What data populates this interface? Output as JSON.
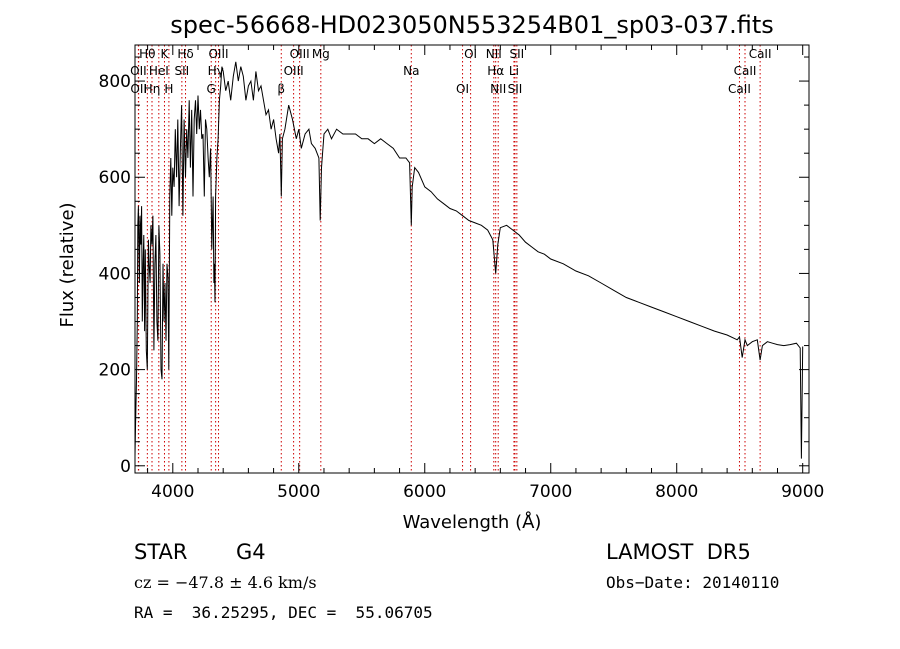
{
  "chart_data": {
    "type": "line",
    "title": "spec-56668-HD023050N553254B01_sp03-037.fits",
    "xlabel": "Wavelength (Å)",
    "ylabel": "Flux (relative)",
    "xlim": [
      3700,
      9050
    ],
    "ylim": [
      -15,
      875
    ],
    "xticks": [
      4000,
      5000,
      6000,
      7000,
      8000,
      9000
    ],
    "yticks": [
      0,
      200,
      400,
      600,
      800
    ],
    "grid": false,
    "series": [
      {
        "x": [
          3700,
          3705,
          3712,
          3718,
          3722,
          3727,
          3735,
          3740,
          3746,
          3752,
          3758,
          3764,
          3770,
          3776,
          3782,
          3790,
          3798,
          3806,
          3812,
          3820,
          3826,
          3834,
          3842,
          3850,
          3858,
          3866,
          3874,
          3882,
          3890,
          3898,
          3906,
          3914,
          3922,
          3930,
          3938,
          3946,
          3954,
          3962,
          3968,
          3976,
          3984,
          3992,
          4000,
          4010,
          4020,
          4030,
          4040,
          4050,
          4060,
          4070,
          4080,
          4090,
          4101,
          4110,
          4120,
          4130,
          4140,
          4150,
          4160,
          4170,
          4180,
          4190,
          4200,
          4210,
          4220,
          4230,
          4240,
          4250,
          4260,
          4270,
          4280,
          4290,
          4300,
          4310,
          4320,
          4326,
          4330,
          4335,
          4340,
          4350,
          4360,
          4370,
          4380,
          4390,
          4400,
          4420,
          4440,
          4460,
          4480,
          4500,
          4520,
          4540,
          4560,
          4580,
          4600,
          4620,
          4640,
          4660,
          4680,
          4700,
          4720,
          4740,
          4760,
          4780,
          4800,
          4820,
          4840,
          4850,
          4861,
          4870,
          4890,
          4920,
          4950,
          4980,
          5000,
          5020,
          5050,
          5080,
          5100,
          5130,
          5160,
          5170,
          5175,
          5180,
          5200,
          5230,
          5260,
          5300,
          5350,
          5400,
          5450,
          5500,
          5550,
          5600,
          5650,
          5700,
          5750,
          5800,
          5850,
          5880,
          5893,
          5900,
          5920,
          5950,
          6000,
          6050,
          6100,
          6150,
          6200,
          6250,
          6300,
          6350,
          6400,
          6450,
          6500,
          6540,
          6563,
          6580,
          6600,
          6650,
          6700,
          6750,
          6800,
          6850,
          6900,
          6950,
          7000,
          7100,
          7200,
          7300,
          7400,
          7500,
          7600,
          7700,
          7800,
          7900,
          8000,
          8100,
          8200,
          8300,
          8400,
          8480,
          8498,
          8520,
          8542,
          8560,
          8600,
          8640,
          8662,
          8680,
          8720,
          8760,
          8800,
          8850,
          8900,
          8950,
          8980,
          8990,
          9000
        ],
        "y": [
          20,
          90,
          180,
          300,
          500,
          540,
          380,
          520,
          460,
          540,
          300,
          420,
          480,
          280,
          450,
          240,
          200,
          470,
          420,
          380,
          500,
          460,
          520,
          240,
          420,
          480,
          300,
          260,
          500,
          440,
          200,
          180,
          420,
          300,
          380,
          260,
          420,
          390,
          200,
          560,
          640,
          520,
          620,
          580,
          700,
          600,
          720,
          540,
          660,
          750,
          520,
          720,
          600,
          700,
          640,
          760,
          620,
          740,
          560,
          720,
          760,
          690,
          770,
          700,
          740,
          680,
          690,
          560,
          720,
          700,
          640,
          600,
          660,
          450,
          560,
          380,
          420,
          340,
          560,
          640,
          680,
          760,
          790,
          830,
          820,
          780,
          800,
          760,
          810,
          840,
          800,
          830,
          810,
          760,
          790,
          800,
          760,
          820,
          780,
          790,
          760,
          730,
          740,
          700,
          720,
          680,
          650,
          690,
          560,
          680,
          700,
          750,
          720,
          680,
          700,
          660,
          690,
          700,
          670,
          660,
          640,
          510,
          560,
          620,
          690,
          700,
          680,
          700,
          690,
          690,
          690,
          680,
          680,
          670,
          680,
          670,
          660,
          640,
          640,
          630,
          500,
          580,
          620,
          610,
          580,
          570,
          555,
          545,
          535,
          530,
          520,
          510,
          505,
          500,
          490,
          470,
          400,
          460,
          495,
          500,
          490,
          480,
          465,
          455,
          445,
          440,
          430,
          420,
          405,
          395,
          380,
          365,
          350,
          340,
          330,
          320,
          310,
          300,
          290,
          280,
          272,
          262,
          268,
          225,
          262,
          250,
          258,
          262,
          220,
          250,
          258,
          255,
          252,
          250,
          252,
          255,
          245,
          15,
          248
        ]
      }
    ],
    "annotations": [
      {
        "text": "Hθ",
        "x": 3798
      },
      {
        "text": "OII",
        "x": 3727
      },
      {
        "text": "OII",
        "x": 3729
      },
      {
        "text": "K",
        "x": 3934
      },
      {
        "text": "HeI",
        "x": 3889
      },
      {
        "text": "Hη",
        "x": 3835
      },
      {
        "text": "Hδ",
        "x": 4101
      },
      {
        "text": "SII",
        "x": 4072
      },
      {
        "text": "H",
        "x": 3969
      },
      {
        "text": "OIII",
        "x": 4363
      },
      {
        "text": "Hγ",
        "x": 4340
      },
      {
        "text": "G",
        "x": 4305
      },
      {
        "text": "OIII",
        "x": 5007
      },
      {
        "text": "OIII",
        "x": 4959
      },
      {
        "text": "β",
        "x": 4861
      },
      {
        "text": "Mg",
        "x": 5175
      },
      {
        "text": "Na",
        "x": 5893
      },
      {
        "text": "OI",
        "x": 6300
      },
      {
        "text": "OI",
        "x": 6364
      },
      {
        "text": "Hα",
        "x": 6563
      },
      {
        "text": "SII",
        "x": 6716
      },
      {
        "text": "NII",
        "x": 6548
      },
      {
        "text": "Li",
        "x": 6708
      },
      {
        "text": "NII",
        "x": 6583
      },
      {
        "text": "SII",
        "x": 6731
      },
      {
        "text": "CaII",
        "x": 8542
      },
      {
        "text": "CaII",
        "x": 8498
      },
      {
        "text": "CaII",
        "x": 8662
      }
    ]
  },
  "footer": {
    "object_type": "STAR",
    "subclass": "G4",
    "survey": "LAMOST  DR5",
    "cz": "cz = −47.8 ± 4.6 km/s",
    "obs_date": "Obs−Date: 20140110",
    "coords": "RA =  36.25295, DEC =  55.06705"
  },
  "colors": {
    "line": "#000000",
    "marker": "#cc0000",
    "axis": "#000000"
  }
}
